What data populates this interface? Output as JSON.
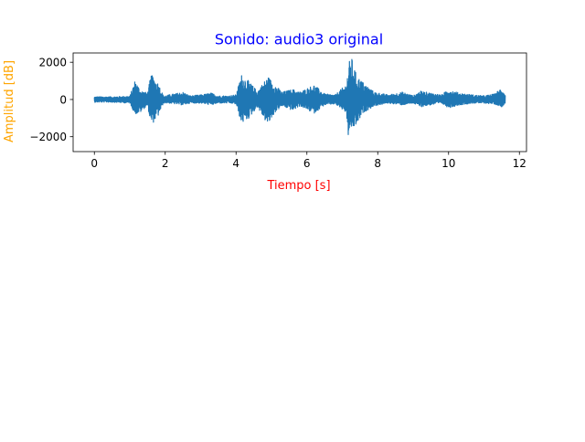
{
  "chart_data": {
    "type": "line",
    "title": "Sonido: audio3 original",
    "xlabel": "Tiempo [s]",
    "ylabel": "Amplitud [dB]",
    "xlim": [
      -0.6,
      12.2
    ],
    "ylim": [
      -2800,
      2500
    ],
    "xticks": [
      0,
      2,
      4,
      6,
      8,
      10,
      12
    ],
    "yticks": [
      -2000,
      0,
      2000
    ],
    "xtick_labels": [
      "0",
      "2",
      "4",
      "6",
      "8",
      "10",
      "12"
    ],
    "ytick_labels": [
      "−2000",
      "0",
      "2000"
    ],
    "grid": false,
    "colors": {
      "series": "#1f77b4",
      "title": "#0000ff",
      "xlabel": "#ff0000",
      "ylabel": "#ffa500",
      "axes": "#000000"
    },
    "series": [
      {
        "time_range": [
          0,
          11.6
        ],
        "envelope": {
          "t": [
            0.0,
            0.5,
            1.0,
            1.15,
            1.3,
            1.5,
            1.6,
            1.8,
            1.95,
            2.1,
            2.5,
            2.7,
            3.0,
            3.3,
            3.5,
            3.8,
            4.0,
            4.15,
            4.35,
            4.6,
            4.9,
            5.1,
            5.3,
            5.6,
            5.8,
            6.2,
            6.5,
            6.8,
            7.1,
            7.2,
            7.25,
            7.4,
            7.6,
            7.9,
            8.3,
            8.7,
            9.0,
            9.2,
            9.5,
            9.8,
            10.0,
            10.3,
            10.7,
            11.0,
            11.3,
            11.5,
            11.6
          ],
          "upper": [
            150,
            150,
            180,
            1050,
            500,
            350,
            1350,
            900,
            200,
            250,
            400,
            200,
            250,
            350,
            200,
            200,
            250,
            1350,
            1000,
            450,
            1250,
            800,
            400,
            550,
            400,
            800,
            300,
            250,
            800,
            2050,
            2350,
            1300,
            900,
            400,
            250,
            400,
            200,
            450,
            350,
            250,
            550,
            350,
            250,
            200,
            300,
            650,
            250
          ],
          "lower": [
            -150,
            -150,
            -200,
            -800,
            -700,
            -300,
            -1400,
            -900,
            -200,
            -200,
            -300,
            -200,
            -200,
            -300,
            -200,
            -200,
            -250,
            -1300,
            -1050,
            -400,
            -1400,
            -700,
            -350,
            -600,
            -350,
            -750,
            -300,
            -250,
            -700,
            -2600,
            -1700,
            -1400,
            -700,
            -350,
            -200,
            -300,
            -200,
            -400,
            -300,
            -200,
            -450,
            -300,
            -200,
            -200,
            -250,
            -400,
            -200
          ]
        }
      }
    ]
  }
}
